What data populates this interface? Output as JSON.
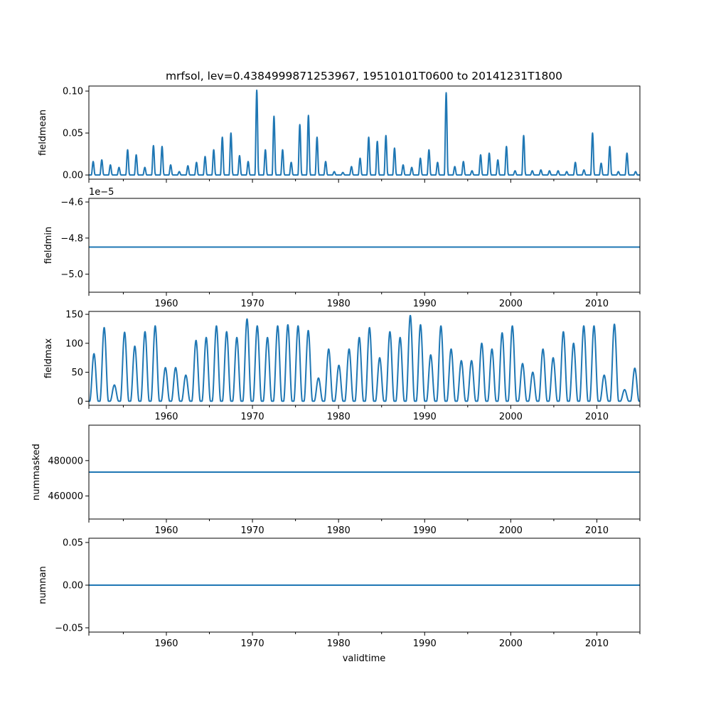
{
  "title": "mrfsol, lev=0.4384999871253967, 19510101T0600 to 20141231T1800",
  "xlabel": "validtime",
  "colors": {
    "line": "#1f77b4",
    "axes": "#000000",
    "background": "#ffffff"
  },
  "chart_data": [
    {
      "type": "line",
      "name": "fieldmean",
      "ylabel": "fieldmean",
      "xlim": [
        1951.0,
        2015.0
      ],
      "ylim": [
        -0.005,
        0.106
      ],
      "xticks": [
        1960,
        1970,
        1980,
        1990,
        2000,
        2010
      ],
      "yticks": [
        0.0,
        0.05,
        0.1
      ],
      "ytick_labels": [
        "0.00",
        "0.05",
        "0.10"
      ],
      "show_xtick_labels": false,
      "offset_text": "",
      "summer_peaks": [
        0.016,
        0.018,
        0.012,
        0.009,
        0.03,
        0.024,
        0.009,
        0.035,
        0.034,
        0.012,
        0.004,
        0.011,
        0.015,
        0.022,
        0.03,
        0.045,
        0.05,
        0.023,
        0.016,
        0.101,
        0.03,
        0.07,
        0.03,
        0.015,
        0.06,
        0.071,
        0.045,
        0.016,
        0.004,
        0.003,
        0.01,
        0.02,
        0.045,
        0.04,
        0.047,
        0.032,
        0.012,
        0.009,
        0.02,
        0.03,
        0.015,
        0.098,
        0.01,
        0.016,
        0.005,
        0.024,
        0.026,
        0.018,
        0.034,
        0.005,
        0.047,
        0.005,
        0.006,
        0.005,
        0.005,
        0.004,
        0.015,
        0.006,
        0.05,
        0.014,
        0.034,
        0.004,
        0.026,
        0.004
      ]
    },
    {
      "type": "line",
      "name": "fieldmin",
      "ylabel": "fieldmin",
      "xlim": [
        1951.0,
        2015.0
      ],
      "ylim": [
        -5.1,
        -4.58
      ],
      "xticks": [
        1960,
        1970,
        1980,
        1990,
        2000,
        2010
      ],
      "yticks": [
        -5.0,
        -4.8,
        -4.6
      ],
      "ytick_labels": [
        "−5.0",
        "−4.8",
        "−4.6"
      ],
      "show_xtick_labels": true,
      "offset_text": "1e−5",
      "constant": -4.85
    },
    {
      "type": "line",
      "name": "fieldmax",
      "ylabel": "fieldmax",
      "xlim": [
        1951.0,
        2015.0
      ],
      "ylim": [
        -7,
        155
      ],
      "xticks": [
        1960,
        1970,
        1980,
        1990,
        2000,
        2010
      ],
      "yticks": [
        0,
        50,
        100,
        150
      ],
      "ytick_labels": [
        "0",
        "50",
        "100",
        "150"
      ],
      "show_xtick_labels": true,
      "offset_text": "",
      "summer_peaks": [
        82,
        127,
        28,
        119,
        95,
        120,
        130,
        58,
        58,
        45,
        105,
        110,
        130,
        120,
        110,
        142,
        130,
        110,
        130,
        132,
        130,
        122,
        40,
        90,
        62,
        90,
        110,
        127,
        75,
        120,
        110,
        148,
        132,
        80,
        130,
        90,
        70,
        70,
        100,
        90,
        118,
        130,
        65,
        50,
        90,
        75,
        120,
        100,
        130,
        130,
        45,
        133,
        20,
        57
      ]
    },
    {
      "type": "line",
      "name": "nummasked",
      "ylabel": "nummasked",
      "xlim": [
        1951.0,
        2015.0
      ],
      "ylim": [
        447000,
        500000
      ],
      "xticks": [
        1960,
        1970,
        1980,
        1990,
        2000,
        2010
      ],
      "yticks": [
        460000,
        480000
      ],
      "ytick_labels": [
        "460000",
        "480000"
      ],
      "show_xtick_labels": true,
      "offset_text": "",
      "constant": 473500
    },
    {
      "type": "line",
      "name": "numnan",
      "ylabel": "numnan",
      "xlim": [
        1951.0,
        2015.0
      ],
      "ylim": [
        -0.055,
        0.055
      ],
      "xticks": [
        1960,
        1970,
        1980,
        1990,
        2000,
        2010
      ],
      "yticks": [
        -0.05,
        0.0,
        0.05
      ],
      "ytick_labels": [
        "−0.05",
        "0.00",
        "0.05"
      ],
      "show_xtick_labels": true,
      "offset_text": "",
      "constant": 0.0
    }
  ]
}
